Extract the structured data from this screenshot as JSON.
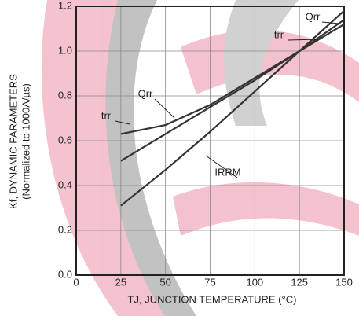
{
  "chart_data": {
    "type": "line",
    "ylabel": [
      "Kf, DYNAMIC PARAMETERS",
      "(Normalized to 1000A/µs)"
    ],
    "xlabel": "TJ, JUNCTION TEMPERATURE (°C)",
    "x": [
      25,
      50,
      75,
      100,
      125,
      150
    ],
    "series": [
      {
        "name": "trr",
        "color": "#333333",
        "values": [
          0.63,
          0.67,
          0.76,
          0.88,
          1.0,
          1.12
        ]
      },
      {
        "name": "Qrr",
        "color": "#333333",
        "values": [
          0.51,
          0.63,
          0.75,
          0.87,
          1.0,
          1.14
        ]
      },
      {
        "name": "IRRM",
        "color": "#333333",
        "values": [
          0.31,
          0.47,
          0.64,
          0.82,
          1.0,
          1.18
        ]
      }
    ],
    "xlim": [
      0,
      150
    ],
    "xticks": [
      0,
      25,
      50,
      75,
      100,
      125,
      150
    ],
    "ylim": [
      0,
      1.2
    ],
    "yticks": [
      {
        "value": 0,
        "label": "0.0"
      },
      0.2,
      0.4,
      0.6,
      0.8,
      {
        "value": 1,
        "label": "1.0"
      },
      1.2
    ],
    "grid": true
  }
}
